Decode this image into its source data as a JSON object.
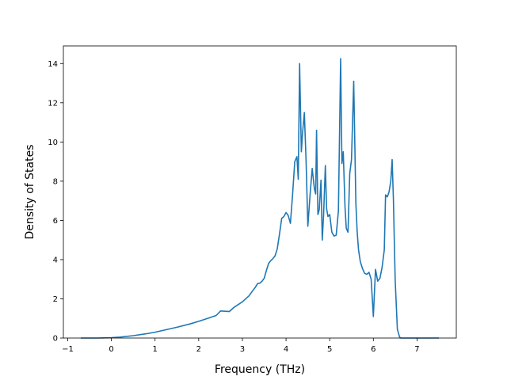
{
  "chart_data": {
    "type": "line",
    "title": "",
    "xlabel": "Frequency (THz)",
    "ylabel": "Density of States",
    "xlim": [
      -1.1,
      7.9
    ],
    "ylim": [
      0,
      14.9
    ],
    "xticks": [
      -1,
      0,
      1,
      2,
      3,
      4,
      5,
      6,
      7
    ],
    "yticks": [
      0,
      2,
      4,
      6,
      8,
      10,
      12,
      14
    ],
    "grid": false,
    "legend": "none",
    "line_color": "#1f77b4",
    "series": [
      {
        "x": [
          -0.7,
          -0.3,
          0.0,
          0.2,
          0.5,
          0.8,
          1.0,
          1.2,
          1.5,
          1.8,
          2.0,
          2.2,
          2.4,
          2.5,
          2.65,
          2.7,
          2.8,
          3.0,
          3.15,
          3.25,
          3.3,
          3.35,
          3.4,
          3.45,
          3.5,
          3.55,
          3.6,
          3.65,
          3.7,
          3.75,
          3.8,
          3.85,
          3.9,
          3.95,
          4.0,
          4.05,
          4.1,
          4.15,
          4.2,
          4.25,
          4.28,
          4.31,
          4.35,
          4.38,
          4.42,
          4.46,
          4.5,
          4.55,
          4.6,
          4.65,
          4.68,
          4.7,
          4.73,
          4.76,
          4.8,
          4.83,
          4.86,
          4.9,
          4.93,
          4.96,
          5.0,
          5.05,
          5.1,
          5.15,
          5.2,
          5.25,
          5.28,
          5.31,
          5.35,
          5.38,
          5.42,
          5.46,
          5.5,
          5.55,
          5.6,
          5.63,
          5.66,
          5.7,
          5.75,
          5.8,
          5.85,
          5.9,
          5.95,
          6.0,
          6.05,
          6.1,
          6.15,
          6.2,
          6.25,
          6.28,
          6.32,
          6.36,
          6.4,
          6.43,
          6.46,
          6.5,
          6.55,
          6.6,
          6.63,
          6.66,
          6.7,
          6.75,
          6.8,
          6.85,
          6.9,
          7.0,
          7.2,
          7.5
        ],
        "y": [
          0.0,
          0.0,
          0.02,
          0.05,
          0.12,
          0.22,
          0.3,
          0.4,
          0.55,
          0.72,
          0.85,
          1.0,
          1.15,
          1.38,
          1.36,
          1.35,
          1.55,
          1.85,
          2.15,
          2.45,
          2.6,
          2.78,
          2.8,
          2.9,
          3.05,
          3.45,
          3.8,
          3.95,
          4.05,
          4.2,
          4.55,
          5.3,
          6.1,
          6.2,
          6.4,
          6.25,
          5.85,
          7.3,
          9.0,
          9.25,
          8.1,
          14.0,
          9.5,
          10.5,
          11.5,
          9.0,
          5.7,
          7.3,
          8.65,
          7.6,
          7.35,
          10.6,
          6.3,
          6.55,
          8.05,
          5.0,
          6.3,
          8.8,
          6.6,
          6.2,
          6.3,
          5.4,
          5.2,
          5.25,
          6.5,
          14.25,
          8.9,
          9.5,
          6.7,
          5.6,
          5.4,
          8.4,
          9.1,
          13.1,
          6.9,
          5.4,
          4.5,
          3.9,
          3.55,
          3.3,
          3.25,
          3.35,
          3.0,
          1.1,
          3.5,
          2.9,
          3.05,
          3.6,
          4.5,
          7.3,
          7.2,
          7.45,
          8.0,
          9.1,
          7.1,
          3.0,
          0.45,
          0.05,
          0.0,
          0.0,
          0.0,
          0.0,
          0.0,
          0.0,
          0.0,
          0.0,
          0.0,
          0.0
        ]
      }
    ]
  }
}
